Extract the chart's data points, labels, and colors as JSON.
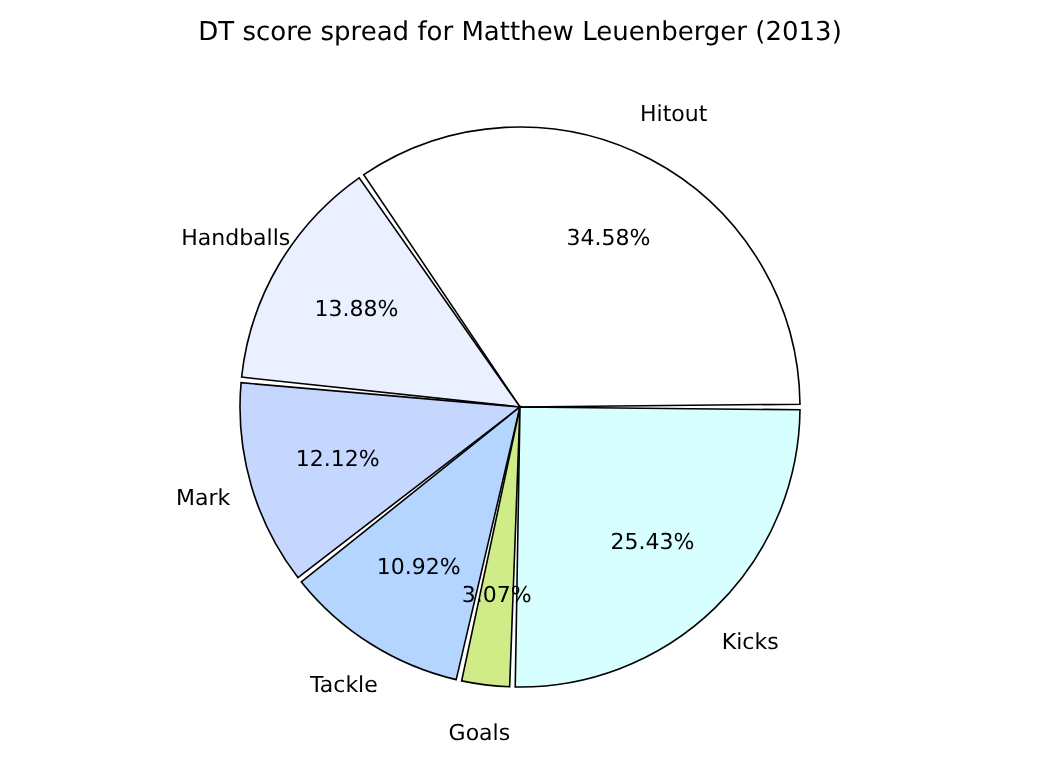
{
  "chart_data": {
    "type": "pie",
    "title": "DT score spread for Matthew Leuenberger (2013)",
    "categories": [
      "Hitout",
      "Handballs",
      "Mark",
      "Tackle",
      "Goals",
      "Kicks"
    ],
    "values": [
      34.58,
      13.88,
      12.12,
      10.92,
      3.07,
      25.43
    ],
    "value_labels": [
      "34.58%",
      "13.88%",
      "12.12%",
      "10.92%",
      "3.07%",
      "25.43%"
    ],
    "colors": [
      "#ffffff",
      "#eaf0ff",
      "#c6d7ff",
      "#b4d5ff",
      "#d0ec88",
      "#d8ffff"
    ],
    "legend": false
  }
}
